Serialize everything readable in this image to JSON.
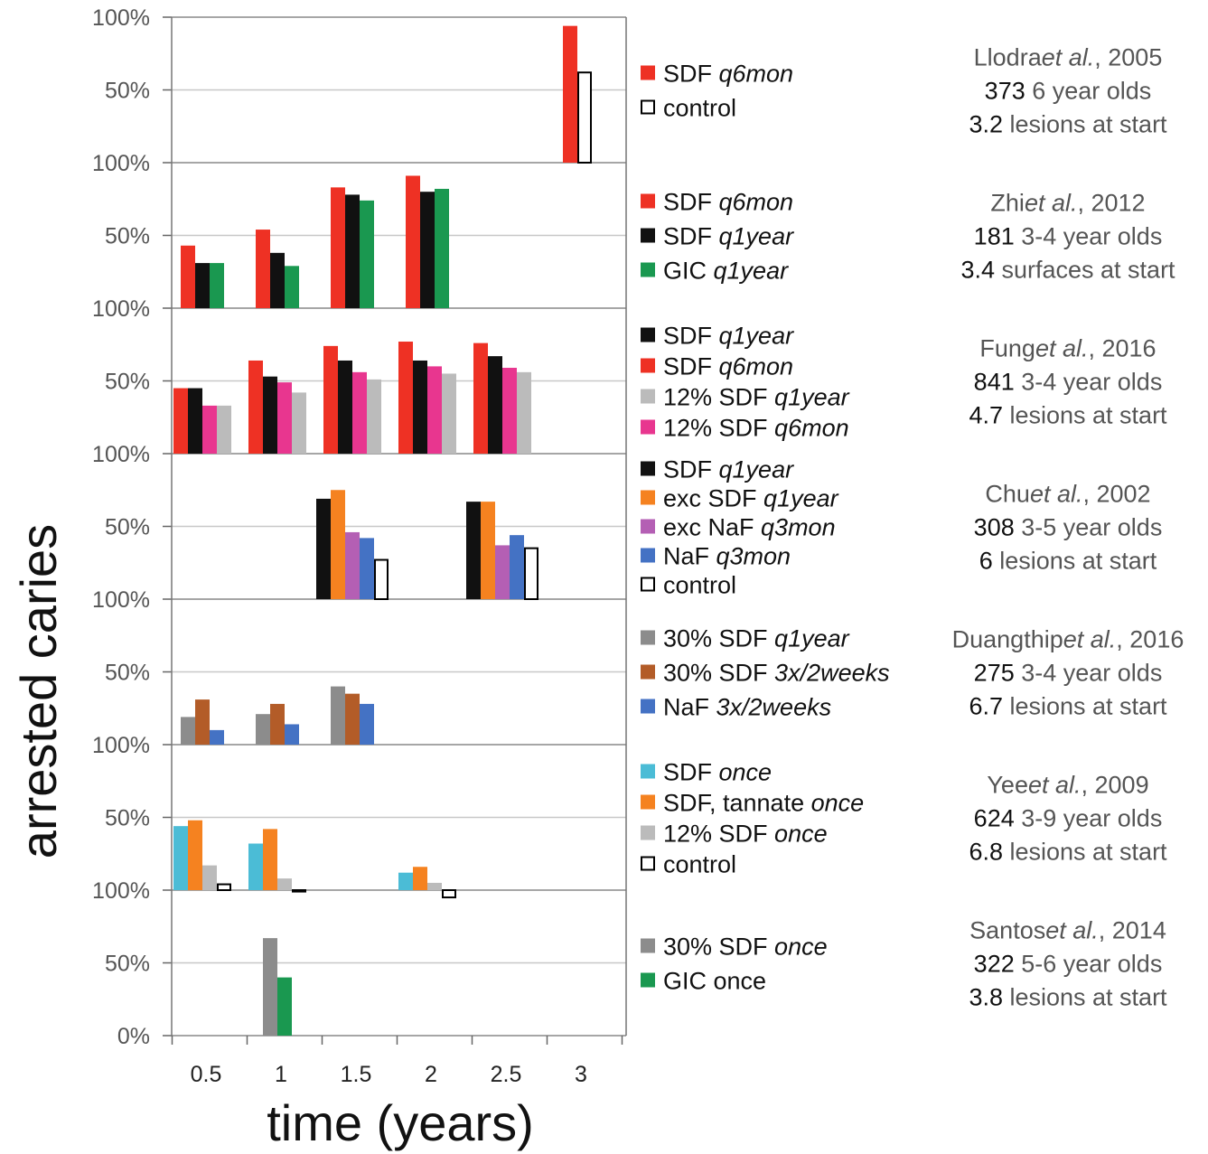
{
  "chart_data": {
    "type": "bar",
    "ylabel": "arrested caries",
    "xlabel": "time (years)",
    "x_ticks": [
      "0.5",
      "1",
      "1.5",
      "2",
      "2.5",
      "3"
    ],
    "y_ticks_top": "100%",
    "y_ticks_mid": "50%",
    "y_ticks_bottom": "0%",
    "panels": [
      {
        "study": {
          "author": "Llodra",
          "etal": "et al.",
          "year": ", 2005",
          "n": "373",
          "n_rest": " 6 year olds",
          "count": "3.2",
          "count_rest": " lesions at start"
        },
        "legend": [
          {
            "color": "#ee3124",
            "outline": false,
            "parts": [
              {
                "t": "SDF ",
                "i": false
              },
              {
                "t": "q6mon",
                "i": true
              }
            ]
          },
          {
            "color": "#ffffff",
            "outline": true,
            "parts": [
              {
                "t": "control",
                "i": false
              }
            ]
          }
        ],
        "groups": [
          {
            "x": 3,
            "bars": [
              {
                "v": 94,
                "c": "#ee3124"
              },
              {
                "v": 62,
                "c": "#ffffff",
                "o": true
              }
            ]
          }
        ]
      },
      {
        "study": {
          "author": "Zhi",
          "etal": "et al.",
          "year": ", 2012",
          "n": "181",
          "n_rest": " 3-4 year olds",
          "count": "3.4",
          "count_rest": " surfaces at start"
        },
        "legend": [
          {
            "color": "#ee3124",
            "outline": false,
            "parts": [
              {
                "t": "SDF ",
                "i": false
              },
              {
                "t": "q6mon",
                "i": true
              }
            ]
          },
          {
            "color": "#111111",
            "outline": false,
            "parts": [
              {
                "t": "SDF ",
                "i": false
              },
              {
                "t": "q1year",
                "i": true
              }
            ]
          },
          {
            "color": "#1a9850",
            "outline": false,
            "parts": [
              {
                "t": "GIC ",
                "i": false
              },
              {
                "t": "q1year",
                "i": true
              }
            ]
          }
        ],
        "groups": [
          {
            "x": 0.5,
            "bars": [
              {
                "v": 43,
                "c": "#ee3124"
              },
              {
                "v": 31,
                "c": "#111111"
              },
              {
                "v": 31,
                "c": "#1a9850"
              }
            ]
          },
          {
            "x": 1,
            "bars": [
              {
                "v": 54,
                "c": "#ee3124"
              },
              {
                "v": 38,
                "c": "#111111"
              },
              {
                "v": 29,
                "c": "#1a9850"
              }
            ]
          },
          {
            "x": 1.5,
            "bars": [
              {
                "v": 83,
                "c": "#ee3124"
              },
              {
                "v": 78,
                "c": "#111111"
              },
              {
                "v": 74,
                "c": "#1a9850"
              }
            ]
          },
          {
            "x": 2,
            "bars": [
              {
                "v": 91,
                "c": "#ee3124"
              },
              {
                "v": 80,
                "c": "#111111"
              },
              {
                "v": 82,
                "c": "#1a9850"
              }
            ]
          }
        ]
      },
      {
        "study": {
          "author": "Fung",
          "etal": "et al.",
          "year": ", 2016",
          "n": "841",
          "n_rest": " 3-4 year olds",
          "count": "4.7",
          "count_rest": " lesions at start"
        },
        "legend": [
          {
            "color": "#111111",
            "outline": false,
            "parts": [
              {
                "t": "SDF ",
                "i": false
              },
              {
                "t": "q1year",
                "i": true
              }
            ]
          },
          {
            "color": "#ee3124",
            "outline": false,
            "parts": [
              {
                "t": "SDF ",
                "i": false
              },
              {
                "t": "q6mon",
                "i": true
              }
            ]
          },
          {
            "color": "#bbbbbb",
            "outline": false,
            "parts": [
              {
                "t": "12% SDF ",
                "i": false
              },
              {
                "t": "q1year",
                "i": true
              }
            ]
          },
          {
            "color": "#e8368f",
            "outline": false,
            "parts": [
              {
                "t": "12% SDF ",
                "i": false
              },
              {
                "t": "q6mon",
                "i": true
              }
            ]
          }
        ],
        "groups": [
          {
            "x": 0.5,
            "bars": [
              {
                "v": 45,
                "c": "#ee3124"
              },
              {
                "v": 45,
                "c": "#111111"
              },
              {
                "v": 33,
                "c": "#e8368f"
              },
              {
                "v": 33,
                "c": "#bbbbbb"
              }
            ]
          },
          {
            "x": 1,
            "bars": [
              {
                "v": 64,
                "c": "#ee3124"
              },
              {
                "v": 53,
                "c": "#111111"
              },
              {
                "v": 49,
                "c": "#e8368f"
              },
              {
                "v": 42,
                "c": "#bbbbbb"
              }
            ]
          },
          {
            "x": 1.5,
            "bars": [
              {
                "v": 74,
                "c": "#ee3124"
              },
              {
                "v": 64,
                "c": "#111111"
              },
              {
                "v": 56,
                "c": "#e8368f"
              },
              {
                "v": 51,
                "c": "#bbbbbb"
              }
            ]
          },
          {
            "x": 2,
            "bars": [
              {
                "v": 77,
                "c": "#ee3124"
              },
              {
                "v": 64,
                "c": "#111111"
              },
              {
                "v": 60,
                "c": "#e8368f"
              },
              {
                "v": 55,
                "c": "#bbbbbb"
              }
            ]
          },
          {
            "x": 2.5,
            "bars": [
              {
                "v": 76,
                "c": "#ee3124"
              },
              {
                "v": 67,
                "c": "#111111"
              },
              {
                "v": 59,
                "c": "#e8368f"
              },
              {
                "v": 56,
                "c": "#bbbbbb"
              }
            ]
          }
        ]
      },
      {
        "study": {
          "author": "Chu",
          "etal": "et al.",
          "year": ", 2002",
          "n": "308",
          "n_rest": " 3-5 year olds",
          "count": "6",
          "count_rest": " lesions at start"
        },
        "legend": [
          {
            "color": "#111111",
            "outline": false,
            "parts": [
              {
                "t": "SDF ",
                "i": false
              },
              {
                "t": "q1year",
                "i": true
              }
            ]
          },
          {
            "color": "#f58220",
            "outline": false,
            "parts": [
              {
                "t": "exc SDF ",
                "i": false
              },
              {
                "t": "q1year",
                "i": true
              }
            ]
          },
          {
            "color": "#b45fb4",
            "outline": false,
            "parts": [
              {
                "t": "exc NaF ",
                "i": false
              },
              {
                "t": "q3mon",
                "i": true
              }
            ]
          },
          {
            "color": "#4472c4",
            "outline": false,
            "parts": [
              {
                "t": "NaF ",
                "i": false
              },
              {
                "t": "q3mon",
                "i": true
              }
            ]
          },
          {
            "color": "#ffffff",
            "outline": true,
            "parts": [
              {
                "t": "control",
                "i": false
              }
            ]
          }
        ],
        "groups": [
          {
            "x": 1.5,
            "bars": [
              {
                "v": 69,
                "c": "#111111"
              },
              {
                "v": 75,
                "c": "#f58220"
              },
              {
                "v": 46,
                "c": "#b45fb4"
              },
              {
                "v": 42,
                "c": "#4472c4"
              },
              {
                "v": 27,
                "c": "#ffffff",
                "o": true
              }
            ]
          },
          {
            "x": 2.5,
            "bars": [
              {
                "v": 67,
                "c": "#111111"
              },
              {
                "v": 67,
                "c": "#f58220"
              },
              {
                "v": 37,
                "c": "#b45fb4"
              },
              {
                "v": 44,
                "c": "#4472c4"
              },
              {
                "v": 35,
                "c": "#ffffff",
                "o": true
              }
            ]
          }
        ]
      },
      {
        "study": {
          "author": "Duangthip",
          "etal": "et al.",
          "year": ", 2016",
          "n": "275",
          "n_rest": " 3-4 year olds",
          "count": "6.7",
          "count_rest": " lesions at start"
        },
        "legend": [
          {
            "color": "#8c8c8c",
            "outline": false,
            "parts": [
              {
                "t": "30% SDF ",
                "i": false
              },
              {
                "t": "q1year",
                "i": true
              }
            ]
          },
          {
            "color": "#b35c28",
            "outline": false,
            "parts": [
              {
                "t": "30% SDF ",
                "i": false
              },
              {
                "t": "3x/2weeks",
                "i": true
              }
            ]
          },
          {
            "color": "#4472c4",
            "outline": false,
            "parts": [
              {
                "t": "NaF ",
                "i": false
              },
              {
                "t": "3x/2weeks",
                "i": true
              }
            ]
          }
        ],
        "groups": [
          {
            "x": 0.5,
            "bars": [
              {
                "v": 19,
                "c": "#8c8c8c"
              },
              {
                "v": 31,
                "c": "#b35c28"
              },
              {
                "v": 10,
                "c": "#4472c4"
              }
            ]
          },
          {
            "x": 1,
            "bars": [
              {
                "v": 21,
                "c": "#8c8c8c"
              },
              {
                "v": 28,
                "c": "#b35c28"
              },
              {
                "v": 14,
                "c": "#4472c4"
              }
            ]
          },
          {
            "x": 1.5,
            "bars": [
              {
                "v": 40,
                "c": "#8c8c8c"
              },
              {
                "v": 35,
                "c": "#b35c28"
              },
              {
                "v": 28,
                "c": "#4472c4"
              }
            ]
          }
        ]
      },
      {
        "study": {
          "author": "Yee",
          "etal": "et al.",
          "year": ", 2009",
          "n": "624",
          "n_rest": " 3-9 year olds",
          "count": "6.8",
          "count_rest": " lesions at start"
        },
        "legend": [
          {
            "color": "#4bbcd6",
            "outline": false,
            "parts": [
              {
                "t": "SDF ",
                "i": false
              },
              {
                "t": "once",
                "i": true
              }
            ]
          },
          {
            "color": "#f58220",
            "outline": false,
            "parts": [
              {
                "t": "SDF, tannate ",
                "i": false
              },
              {
                "t": "once",
                "i": true
              }
            ]
          },
          {
            "color": "#bbbbbb",
            "outline": false,
            "parts": [
              {
                "t": "12% SDF ",
                "i": false
              },
              {
                "t": "once",
                "i": true
              }
            ]
          },
          {
            "color": "#ffffff",
            "outline": true,
            "parts": [
              {
                "t": "control",
                "i": false
              }
            ]
          }
        ],
        "groups": [
          {
            "x": 0.5,
            "bars": [
              {
                "v": 44,
                "c": "#4bbcd6"
              },
              {
                "v": 48,
                "c": "#f58220"
              },
              {
                "v": 17,
                "c": "#bbbbbb"
              },
              {
                "v": 4,
                "c": "#ffffff",
                "o": true
              }
            ]
          },
          {
            "x": 1,
            "bars": [
              {
                "v": 32,
                "c": "#4bbcd6"
              },
              {
                "v": 42,
                "c": "#f58220"
              },
              {
                "v": 8,
                "c": "#bbbbbb"
              },
              {
                "v": -1,
                "c": "#ffffff",
                "o": true
              }
            ]
          },
          {
            "x": 2,
            "bars": [
              {
                "v": 12,
                "c": "#4bbcd6"
              },
              {
                "v": 16,
                "c": "#f58220"
              },
              {
                "v": 5,
                "c": "#bbbbbb"
              },
              {
                "v": -5,
                "c": "#ffffff",
                "o": true
              }
            ]
          }
        ]
      },
      {
        "study": {
          "author": "Santos",
          "etal": "et al.",
          "year": ", 2014",
          "n": "322",
          "n_rest": " 5-6 year olds",
          "count": "3.8",
          "count_rest": " lesions at start"
        },
        "legend": [
          {
            "color": "#8c8c8c",
            "outline": false,
            "parts": [
              {
                "t": "30% SDF ",
                "i": false
              },
              {
                "t": "once",
                "i": true
              }
            ]
          },
          {
            "color": "#1a9850",
            "outline": false,
            "parts": [
              {
                "t": "GIC once",
                "i": false
              }
            ]
          }
        ],
        "groups": [
          {
            "x": 1,
            "bars": [
              {
                "v": 67,
                "c": "#8c8c8c"
              },
              {
                "v": 40,
                "c": "#1a9850"
              }
            ]
          }
        ]
      }
    ]
  }
}
